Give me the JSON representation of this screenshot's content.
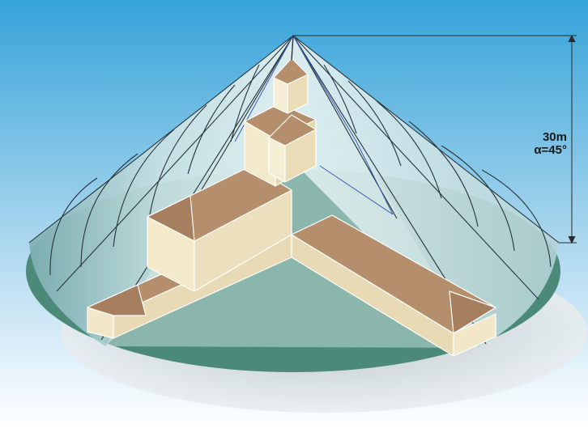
{
  "dimension": {
    "height_label": "30m",
    "angle_label": "α=45°"
  },
  "colors": {
    "sky_top": "#3aa6d8",
    "sky_bottom": "#ffffff",
    "ground": "#4b8a78",
    "cone_fill": "#c7dfe2",
    "roof": "#b58e6c",
    "wall": "#ecdfbd",
    "mesh_line": "#26343a"
  }
}
